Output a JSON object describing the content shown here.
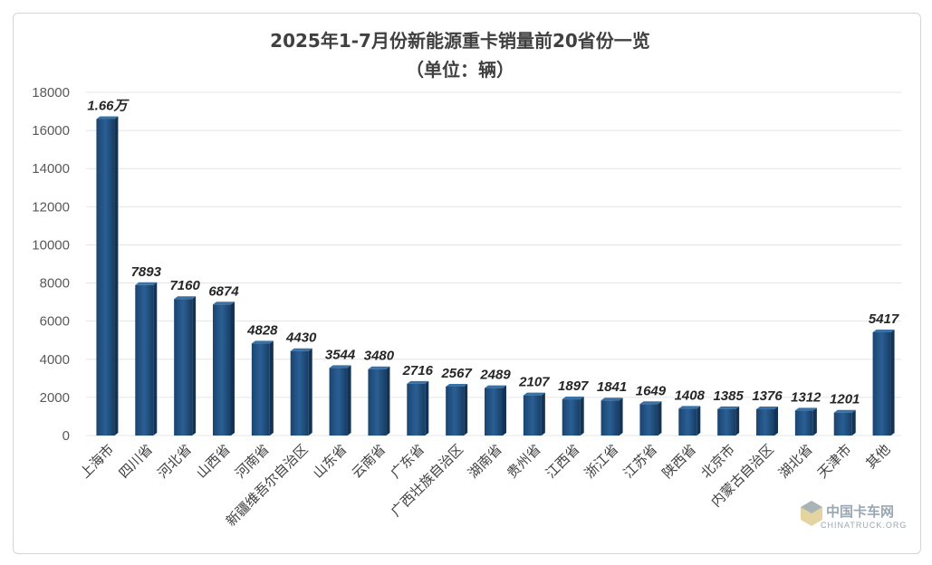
{
  "chart_data": {
    "type": "bar",
    "title": "2025年1-7月份新能源重卡销量前20省份一览",
    "subtitle": "（单位：辆）",
    "categories": [
      "上海市",
      "四川省",
      "河北省",
      "山西省",
      "河南省",
      "新疆维吾尔自治区",
      "山东省",
      "云南省",
      "广东省",
      "广西壮族自治区",
      "湖南省",
      "贵州省",
      "江西省",
      "浙江省",
      "江苏省",
      "陕西省",
      "北京市",
      "内蒙古自治区",
      "湖北省",
      "天津市",
      "其他"
    ],
    "values": [
      16600,
      7893,
      7160,
      6874,
      4828,
      4430,
      3544,
      3480,
      2716,
      2567,
      2489,
      2107,
      1897,
      1841,
      1649,
      1408,
      1385,
      1376,
      1312,
      1201,
      5417
    ],
    "data_labels": [
      "1.66万",
      "7893",
      "7160",
      "6874",
      "4828",
      "4430",
      "3544",
      "3480",
      "2716",
      "2567",
      "2489",
      "2107",
      "1897",
      "1841",
      "1649",
      "1408",
      "1385",
      "1376",
      "1312",
      "1201",
      "5417"
    ],
    "yticks": [
      "0",
      "2000",
      "4000",
      "6000",
      "8000",
      "10000",
      "12000",
      "14000",
      "16000",
      "18000"
    ],
    "ylim": [
      0,
      18000
    ],
    "xlabel": "",
    "ylabel": "",
    "grid": true,
    "bar_color": "#1f4e79"
  },
  "watermark": {
    "name": "中国卡车网",
    "site": "CHINATRUCK.ORG"
  }
}
